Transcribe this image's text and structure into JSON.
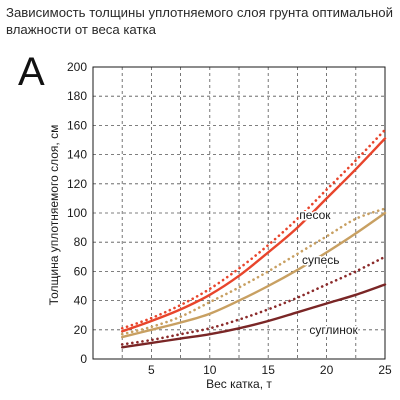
{
  "title_line1": "Зависимость толщины уплотняемого слоя грунта оптимальной",
  "title_line2": "влажности от веса катка",
  "panel_label": "A",
  "chart_data": {
    "type": "line",
    "xlabel": "Вес катка, т",
    "ylabel": "Толщина уплотняемого слоя, см",
    "xlim": [
      0,
      25
    ],
    "ylim": [
      0,
      200
    ],
    "x_ticks": [
      5,
      10,
      15,
      20,
      25
    ],
    "y_ticks": [
      0,
      20,
      40,
      60,
      80,
      100,
      120,
      140,
      160,
      180,
      200
    ],
    "grid": true,
    "series": [
      {
        "name": "песок",
        "style": "solid",
        "color": "#e8452c",
        "x": [
          2.5,
          5,
          7.5,
          10,
          12.5,
          15,
          17.5,
          20,
          22.5,
          25
        ],
        "y": [
          19,
          26,
          34,
          44,
          57,
          73,
          90,
          110,
          130,
          151
        ]
      },
      {
        "name": "",
        "style": "dotted",
        "color": "#e8452c",
        "x": [
          2.5,
          5,
          7.5,
          10,
          12.5,
          15,
          17.5,
          20,
          22.5,
          25
        ],
        "y": [
          21,
          28,
          37,
          48,
          62,
          78,
          96,
          116,
          136,
          157
        ]
      },
      {
        "name": "супесь",
        "style": "solid",
        "color": "#c8a062",
        "x": [
          2.5,
          5,
          7.5,
          10,
          12.5,
          15,
          17.5,
          20,
          22.5,
          25
        ],
        "y": [
          15,
          20,
          25,
          31,
          40,
          50,
          61,
          73,
          86,
          100
        ]
      },
      {
        "name": "",
        "style": "dotted",
        "color": "#c8a062",
        "x": [
          2.5,
          5,
          7.5,
          10,
          12.5,
          15,
          17.5,
          20,
          22.5,
          25
        ],
        "y": [
          17,
          22,
          29,
          39,
          49,
          60,
          72,
          84,
          96,
          103
        ]
      },
      {
        "name": "",
        "style": "dotted",
        "color": "#8b2a2a",
        "x": [
          2.5,
          5,
          7.5,
          10,
          12.5,
          15,
          17.5,
          20,
          22.5,
          25
        ],
        "y": [
          10,
          13,
          17,
          21,
          27,
          34,
          42,
          51,
          60,
          70
        ]
      },
      {
        "name": "суглинок",
        "style": "solid",
        "color": "#7a2626",
        "x": [
          2.5,
          5,
          7.5,
          10,
          12.5,
          15,
          17.5,
          20,
          22.5,
          25
        ],
        "y": [
          8,
          11,
          14,
          17,
          21,
          26,
          32,
          38,
          44,
          51
        ]
      }
    ],
    "series_labels": [
      {
        "text": "песок",
        "x": 19,
        "y": 96
      },
      {
        "text": "супесь",
        "x": 19.5,
        "y": 65
      },
      {
        "text": "суглинок",
        "x": 20.6,
        "y": 17
      }
    ]
  }
}
